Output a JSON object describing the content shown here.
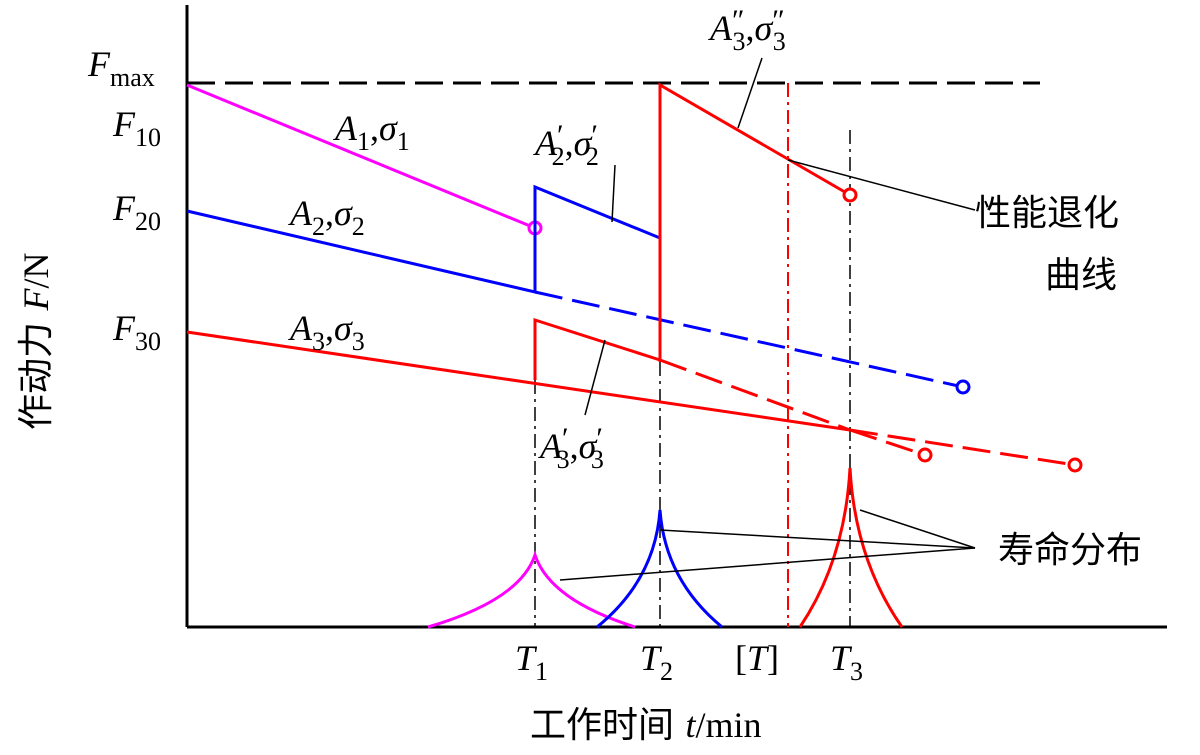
{
  "axes": {
    "y_label": [
      {
        "text": "作动力 "
      },
      {
        "text": "F",
        "italic": true
      },
      {
        "text": "/N"
      }
    ],
    "x_label": [
      {
        "text": "工作时间 "
      },
      {
        "text": "t",
        "italic": true
      },
      {
        "text": "/min"
      }
    ]
  },
  "y_labels": [
    [
      {
        "text": "F",
        "italic": true,
        "sub": "max"
      }
    ],
    [
      {
        "text": "F",
        "italic": true,
        "sub": "10"
      }
    ],
    [
      {
        "text": "F",
        "italic": true,
        "sub": "20"
      }
    ],
    [
      {
        "text": "F",
        "italic": true,
        "sub": "30"
      }
    ]
  ],
  "x_labels": [
    [
      {
        "text": "T",
        "italic": true,
        "sub": "1"
      }
    ],
    [
      {
        "text": "T",
        "italic": true,
        "sub": "2"
      }
    ],
    [
      {
        "text": "["
      },
      {
        "text": "T",
        "italic": true
      },
      {
        "text": "]"
      }
    ],
    [
      {
        "text": "T",
        "italic": true,
        "sub": "3"
      }
    ]
  ],
  "curve_labels": [
    [
      {
        "text": "A",
        "italic": true,
        "sub": "1"
      },
      {
        "text": ","
      },
      {
        "text": "σ",
        "italic": true,
        "sub": "1"
      }
    ],
    [
      {
        "text": "A",
        "italic": true,
        "sub": "2",
        "sup": "′"
      },
      {
        "text": ","
      },
      {
        "text": "σ",
        "italic": true,
        "sub": "2",
        "sup": "′"
      }
    ],
    [
      {
        "text": "A",
        "italic": true,
        "sub": "2"
      },
      {
        "text": ","
      },
      {
        "text": "σ",
        "italic": true,
        "sub": "2"
      }
    ],
    [
      {
        "text": "A",
        "italic": true,
        "sub": "3"
      },
      {
        "text": ","
      },
      {
        "text": "σ",
        "italic": true,
        "sub": "3"
      }
    ],
    [
      {
        "text": "A",
        "italic": true,
        "sub": "3",
        "sup": "″"
      },
      {
        "text": ","
      },
      {
        "text": "σ",
        "italic": true,
        "sub": "3",
        "sup": "″"
      }
    ],
    [
      {
        "text": "A",
        "italic": true,
        "sub": "3",
        "sup": "′"
      },
      {
        "text": ","
      },
      {
        "text": "σ",
        "italic": true,
        "sub": "3",
        "sup": "′"
      }
    ]
  ],
  "annotations": {
    "degradation": [
      "性能退化",
      "曲线"
    ],
    "life_distribution": "寿命分布"
  }
}
